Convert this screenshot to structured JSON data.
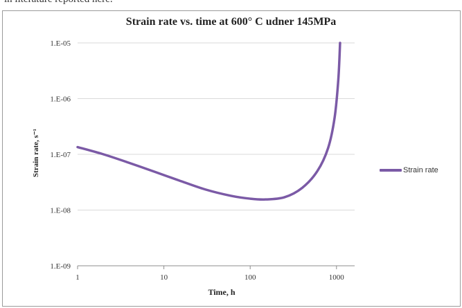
{
  "page": {
    "top_fragment": "in literature reported here."
  },
  "chart_data": {
    "type": "line",
    "title": "Strain rate vs. time at 600° C udner 145MPa",
    "xlabel": "Time, h",
    "ylabel": "Strain rate, s⁻¹",
    "x_scale": "log",
    "y_scale": "log",
    "xlim": [
      1,
      1300
    ],
    "ylim": [
      1e-09,
      1e-05
    ],
    "x_ticks": [
      1,
      10,
      100,
      1000
    ],
    "x_tick_labels": [
      "1",
      "10",
      "100",
      "1000"
    ],
    "y_ticks": [
      1e-09,
      1e-08,
      1e-07,
      1e-06,
      1e-05
    ],
    "y_tick_labels": [
      "1.E-09",
      "1.E-08",
      "1.E-07",
      "1.E-06",
      "1.E-05"
    ],
    "grid": "horizontal",
    "legend_position": "right",
    "series": [
      {
        "name": "Strain rate",
        "color": "#7b5aa6",
        "x": [
          1,
          2,
          4,
          8,
          15,
          30,
          60,
          100,
          150,
          250,
          400,
          600,
          800,
          950,
          1050,
          1100
        ],
        "y": [
          1.35e-07,
          1e-07,
          7e-08,
          4.8e-08,
          3.4e-08,
          2.35e-08,
          1.8e-08,
          1.6e-08,
          1.55e-08,
          1.7e-08,
          2.5e-08,
          5e-08,
          1.3e-07,
          4.5e-07,
          2.2e-06,
          1e-05
        ]
      }
    ]
  }
}
